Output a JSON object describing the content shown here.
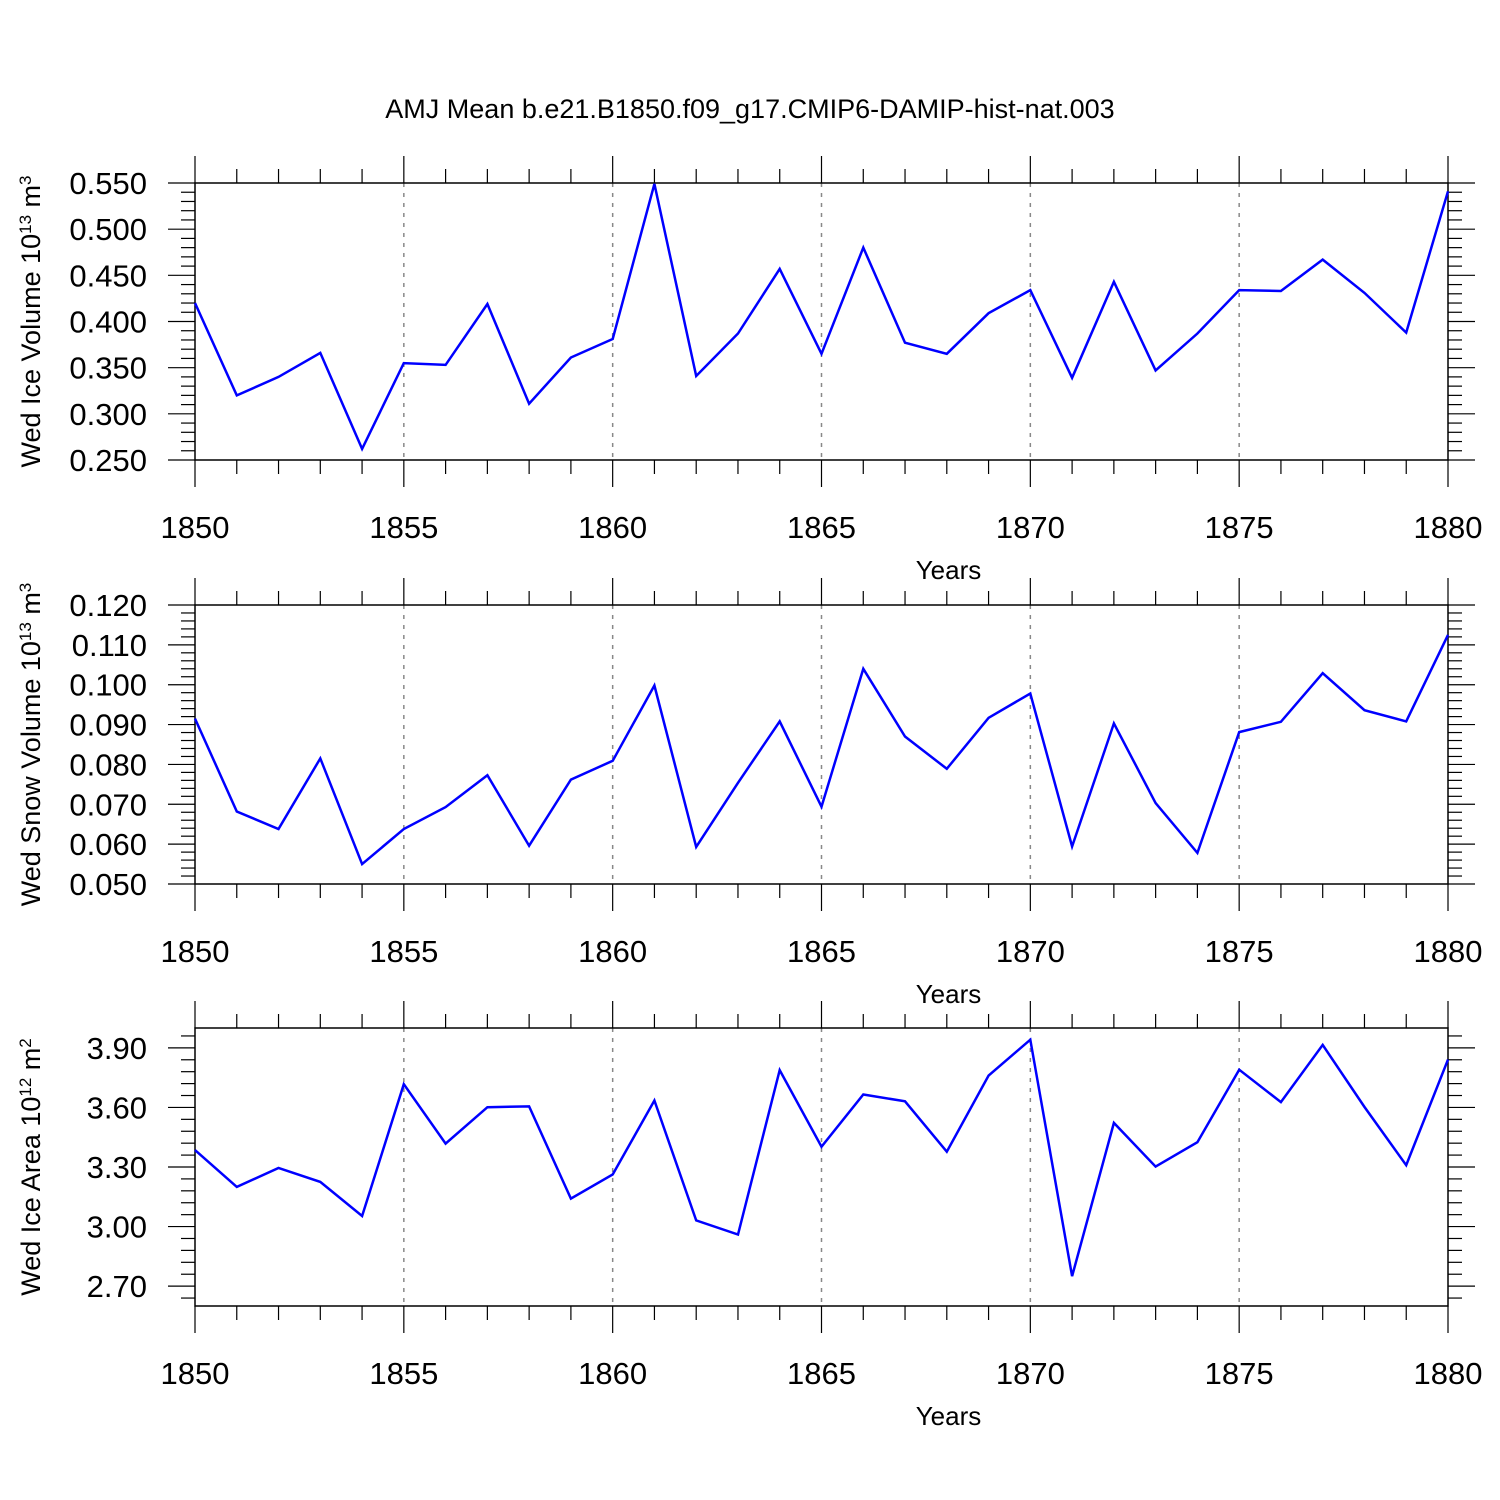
{
  "title": "AMJ Mean b.e21.B1850.f09_g17.CMIP6-DAMIP-hist-nat.003",
  "chart_data": [
    {
      "type": "line",
      "name": "ice-volume",
      "title": "",
      "ylabel_main": "Wed Ice Volume 10",
      "ylabel_sup": "13",
      "ylabel_unit": " m",
      "ylabel_unit_sup": "3",
      "xlabel": "Years",
      "xlim": [
        1850,
        1880
      ],
      "ylim": [
        0.25,
        0.55
      ],
      "xticks": [
        1850,
        1855,
        1860,
        1865,
        1870,
        1875,
        1880
      ],
      "xtick_labels": [
        "1850",
        "1855",
        "1860",
        "1865",
        "1870",
        "1875",
        "1880"
      ],
      "yticks": [
        0.25,
        0.3,
        0.35,
        0.4,
        0.45,
        0.5,
        0.55
      ],
      "ytick_labels": [
        "0.250",
        "0.300",
        "0.350",
        "0.400",
        "0.450",
        "0.500",
        "0.550"
      ],
      "grid": "vertical-dashed",
      "color": "#0000ff",
      "series": [
        {
          "name": "Wed Ice Volume",
          "x": [
            1850,
            1851,
            1852,
            1853,
            1854,
            1855,
            1856,
            1857,
            1858,
            1859,
            1860,
            1861,
            1862,
            1863,
            1864,
            1865,
            1866,
            1867,
            1868,
            1869,
            1870,
            1871,
            1872,
            1873,
            1874,
            1875,
            1876,
            1877,
            1878,
            1879,
            1880
          ],
          "values": [
            0.42,
            0.32,
            0.34,
            0.366,
            0.262,
            0.355,
            0.353,
            0.419,
            0.311,
            0.361,
            0.381,
            0.549,
            0.341,
            0.387,
            0.457,
            0.365,
            0.48,
            0.377,
            0.365,
            0.409,
            0.434,
            0.339,
            0.443,
            0.347,
            0.387,
            0.434,
            0.433,
            0.467,
            0.431,
            0.388,
            0.541
          ]
        }
      ]
    },
    {
      "type": "line",
      "name": "snow-volume",
      "title": "",
      "ylabel_main": "Wed Snow Volume 10",
      "ylabel_sup": "13",
      "ylabel_unit": " m",
      "ylabel_unit_sup": "3",
      "xlabel": "Years",
      "xlim": [
        1850,
        1880
      ],
      "ylim": [
        0.05,
        0.12
      ],
      "xticks": [
        1850,
        1855,
        1860,
        1865,
        1870,
        1875,
        1880
      ],
      "xtick_labels": [
        "1850",
        "1855",
        "1860",
        "1865",
        "1870",
        "1875",
        "1880"
      ],
      "yticks": [
        0.05,
        0.06,
        0.07,
        0.08,
        0.09,
        0.1,
        0.11,
        0.12
      ],
      "ytick_labels": [
        "0.050",
        "0.060",
        "0.070",
        "0.080",
        "0.090",
        "0.100",
        "0.110",
        "0.120"
      ],
      "grid": "vertical-dashed",
      "color": "#0000ff",
      "series": [
        {
          "name": "Wed Snow Volume",
          "x": [
            1850,
            1851,
            1852,
            1853,
            1854,
            1855,
            1856,
            1857,
            1858,
            1859,
            1860,
            1861,
            1862,
            1863,
            1864,
            1865,
            1866,
            1867,
            1868,
            1869,
            1870,
            1871,
            1872,
            1873,
            1874,
            1875,
            1876,
            1877,
            1878,
            1879,
            1880
          ],
          "values": [
            0.0915,
            0.0682,
            0.0638,
            0.0815,
            0.055,
            0.0638,
            0.0693,
            0.0773,
            0.0596,
            0.0762,
            0.0809,
            0.0998,
            0.0593,
            0.0754,
            0.0908,
            0.0694,
            0.104,
            0.087,
            0.0789,
            0.0917,
            0.0978,
            0.0594,
            0.0903,
            0.0703,
            0.0578,
            0.0881,
            0.0907,
            0.1029,
            0.0936,
            0.0908,
            0.1125
          ]
        }
      ]
    },
    {
      "type": "line",
      "name": "ice-area",
      "title": "",
      "ylabel_main": "Wed Ice Area 10",
      "ylabel_sup": "12",
      "ylabel_unit": " m",
      "ylabel_unit_sup": "2",
      "xlabel": "Years",
      "xlim": [
        1850,
        1880
      ],
      "ylim": [
        2.6,
        4.0
      ],
      "xticks": [
        1850,
        1855,
        1860,
        1865,
        1870,
        1875,
        1880
      ],
      "xtick_labels": [
        "1850",
        "1855",
        "1860",
        "1865",
        "1870",
        "1875",
        "1880"
      ],
      "yticks": [
        2.7,
        3.0,
        3.3,
        3.6,
        3.9
      ],
      "ytick_labels": [
        "2.70",
        "3.00",
        "3.30",
        "3.60",
        "3.90"
      ],
      "grid": "vertical-dashed",
      "color": "#0000ff",
      "series": [
        {
          "name": "Wed Ice Area",
          "x": [
            1850,
            1851,
            1852,
            1853,
            1854,
            1855,
            1856,
            1857,
            1858,
            1859,
            1860,
            1861,
            1862,
            1863,
            1864,
            1865,
            1866,
            1867,
            1868,
            1869,
            1870,
            1871,
            1872,
            1873,
            1874,
            1875,
            1876,
            1877,
            1878,
            1879,
            1880
          ],
          "values": [
            3.385,
            3.2,
            3.295,
            3.225,
            3.053,
            3.717,
            3.418,
            3.601,
            3.605,
            3.141,
            3.262,
            3.635,
            3.031,
            2.96,
            3.788,
            3.402,
            3.665,
            3.631,
            3.377,
            3.761,
            3.941,
            2.75,
            3.522,
            3.302,
            3.425,
            3.79,
            3.627,
            3.915,
            3.602,
            3.309,
            3.841
          ]
        }
      ]
    }
  ]
}
